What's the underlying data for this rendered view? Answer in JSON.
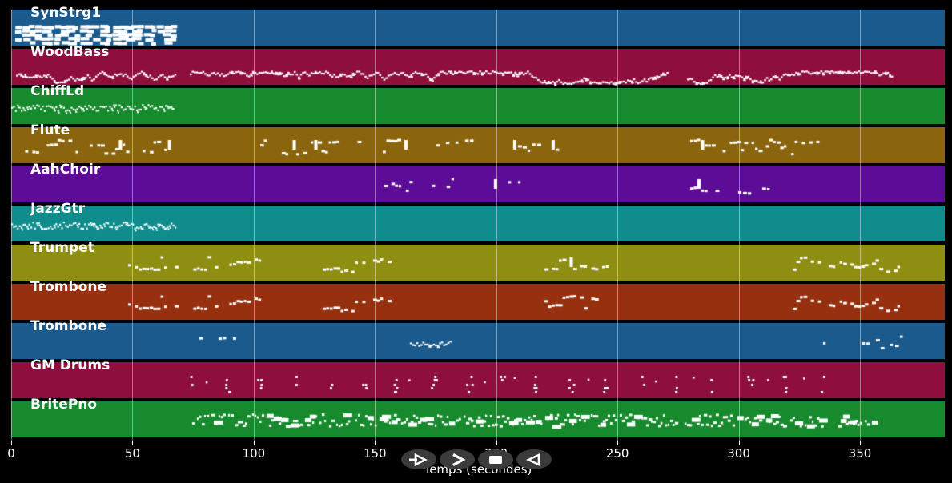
{
  "figure": {
    "background": "#000000",
    "note_color": "#ffffff",
    "grid_color": "rgba(255,255,255,0.42)"
  },
  "axis": {
    "title": "Temps (secondes)",
    "ticks": [
      "0",
      "50",
      "100",
      "150",
      "200",
      "250",
      "300",
      "350"
    ],
    "tick_values": [
      0,
      50,
      100,
      150,
      200,
      250,
      300,
      350
    ],
    "range_seconds": [
      0,
      385
    ]
  },
  "transport": {
    "button_color": "#3b3b3b",
    "glyph_color": "#ffffff",
    "buttons": [
      {
        "id": "play",
        "label": "play"
      },
      {
        "id": "fast-forward",
        "label": "fast-forward"
      },
      {
        "id": "stop",
        "label": "stop"
      },
      {
        "id": "rewind",
        "label": "rewind"
      }
    ]
  },
  "tracks": [
    {
      "label": "SynStrg1",
      "color": "#1a5a8c",
      "segments": [
        {
          "start": 2,
          "end": 67.3,
          "pattern": "chords"
        }
      ]
    },
    {
      "label": "WoodBass",
      "color": "#8e0e3e",
      "segments": [
        {
          "start": 2,
          "end": 67.3,
          "pattern": "wave"
        },
        {
          "start": 73.6,
          "end": 271,
          "pattern": "wave"
        },
        {
          "start": 278.7,
          "end": 362.9,
          "pattern": "wave"
        }
      ]
    },
    {
      "label": "ChiffLd",
      "color": "#168a2c",
      "segments": [
        {
          "start": 0,
          "end": 67.3,
          "pattern": "dense"
        }
      ]
    },
    {
      "label": "Flute",
      "color": "#8a650e",
      "segments": [
        {
          "start": 1.3,
          "end": 48.9,
          "pattern": "melody"
        },
        {
          "start": 54.2,
          "end": 67.3,
          "pattern": "melody"
        },
        {
          "start": 102.7,
          "end": 144,
          "pattern": "melody"
        },
        {
          "start": 153.2,
          "end": 164.4,
          "pattern": "melody"
        },
        {
          "start": 175.3,
          "end": 226.5,
          "pattern": "sparse"
        },
        {
          "start": 280,
          "end": 332.2,
          "pattern": "melody"
        }
      ]
    },
    {
      "label": "AahChoir",
      "color": "#5c0c96",
      "segments": [
        {
          "start": 153.8,
          "end": 164.4,
          "pattern": "melody"
        },
        {
          "start": 173.6,
          "end": 185.2,
          "pattern": "sparse"
        },
        {
          "start": 195.1,
          "end": 209.3,
          "pattern": "sparse"
        },
        {
          "start": 280,
          "end": 290.9,
          "pattern": "melody"
        },
        {
          "start": 299.8,
          "end": 311.7,
          "pattern": "sparse"
        }
      ]
    },
    {
      "label": "JazzGtr",
      "color": "#108c8c",
      "segments": [
        {
          "start": 0,
          "end": 68,
          "pattern": "dense"
        }
      ]
    },
    {
      "label": "Trumpet",
      "color": "#8e8e12",
      "segments": [
        {
          "start": 48.2,
          "end": 68,
          "pattern": "melody"
        },
        {
          "start": 73.6,
          "end": 102.7,
          "pattern": "melody"
        },
        {
          "start": 122.5,
          "end": 157.1,
          "pattern": "melody"
        },
        {
          "start": 219.9,
          "end": 246.9,
          "pattern": "melody"
        },
        {
          "start": 322.3,
          "end": 366.8,
          "pattern": "melody"
        }
      ]
    },
    {
      "label": "Trombone",
      "color": "#96300e",
      "segments": [
        {
          "start": 48.2,
          "end": 68,
          "pattern": "melody"
        },
        {
          "start": 73.6,
          "end": 102.7,
          "pattern": "melody"
        },
        {
          "start": 122.5,
          "end": 157.1,
          "pattern": "melody"
        },
        {
          "start": 219.9,
          "end": 241.3,
          "pattern": "melody"
        },
        {
          "start": 322.3,
          "end": 366.8,
          "pattern": "melody"
        }
      ]
    },
    {
      "label": "Trombone",
      "color": "#1a5a8c",
      "segments": [
        {
          "start": 75.6,
          "end": 93.8,
          "pattern": "sparse"
        },
        {
          "start": 164.4,
          "end": 180.9,
          "pattern": "wavelet"
        },
        {
          "start": 334.8,
          "end": 367.8,
          "pattern": "sparse"
        }
      ]
    },
    {
      "label": "GM Drums",
      "color": "#8e0e3e",
      "segments": [
        {
          "start": 72.3,
          "end": 348.6,
          "pattern": "hits"
        }
      ]
    },
    {
      "label": "BritePno",
      "color": "#168a2c",
      "segments": [
        {
          "start": 73.6,
          "end": 355.2,
          "pattern": "piano"
        }
      ]
    }
  ]
}
